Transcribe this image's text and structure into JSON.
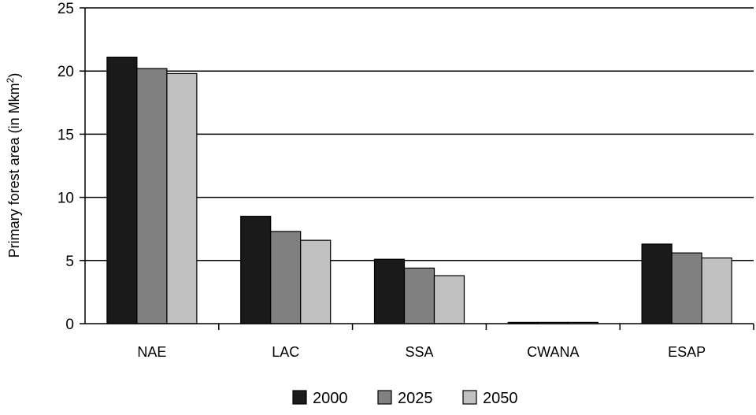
{
  "chart_data": {
    "type": "bar",
    "ylabel": "Primary forest area (in Mkm",
    "ylabel_sup": "2",
    "ylabel_end": ")",
    "ylim": [
      0,
      25
    ],
    "yticks": [
      0,
      5,
      10,
      15,
      20,
      25
    ],
    "categories": [
      "NAE",
      "LAC",
      "SSA",
      "CWANA",
      "ESAP"
    ],
    "series": [
      {
        "name": "2000",
        "color": "#1a1a1a",
        "values": [
          21.1,
          8.5,
          5.1,
          0.1,
          6.3
        ]
      },
      {
        "name": "2025",
        "color": "#808080",
        "values": [
          20.2,
          7.3,
          4.4,
          0.1,
          5.6
        ]
      },
      {
        "name": "2050",
        "color": "#c0c0c0",
        "values": [
          19.8,
          6.6,
          3.8,
          0.1,
          5.2
        ]
      }
    ],
    "grid": true,
    "legend_position": "bottom"
  }
}
